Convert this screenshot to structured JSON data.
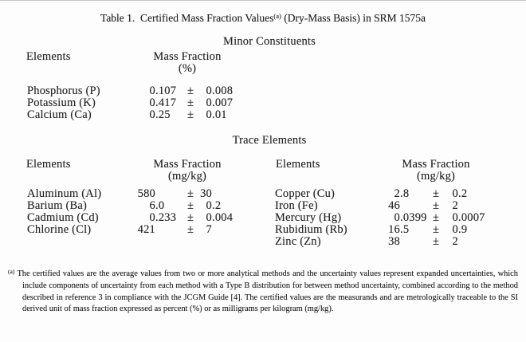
{
  "title": {
    "pre": "Table 1.  Certified Mass Fraction Values",
    "sup": "(a)",
    "post": " (Dry-Mass Basis) in SRM 1575a"
  },
  "symbols": {
    "plus_minus": "±"
  },
  "minor": {
    "heading": "Minor Constituents",
    "col_elements": "Elements",
    "col_mass_fraction": "Mass Fraction",
    "col_unit": "(%)",
    "rows": [
      {
        "element": "Phosphorus (P)",
        "value": "0.107",
        "uncertainty": "0.008"
      },
      {
        "element": "Potassium (K)",
        "value": "0.417",
        "uncertainty": "0.007"
      },
      {
        "element": "Calcium (Ca)",
        "value": "0.25",
        "uncertainty": "0.01"
      }
    ]
  },
  "trace": {
    "heading": "Trace Elements",
    "left": {
      "col_elements": "Elements",
      "col_mass_fraction": "Mass Fraction",
      "col_unit": "(mg/kg)",
      "rows": [
        {
          "element": "Aluminum (Al)",
          "value": "580",
          "uncertainty": "30"
        },
        {
          "element": "Barium (Ba)",
          "value": "6.0",
          "uncertainty": "0.2"
        },
        {
          "element": "Cadmium (Cd)",
          "value": "0.233",
          "uncertainty": "0.004"
        },
        {
          "element": "Chlorine (Cl)",
          "value": "421",
          "uncertainty": "7"
        }
      ]
    },
    "right": {
      "col_elements": "Elements",
      "col_mass_fraction": "Mass Fraction",
      "col_unit": "(mg/kg)",
      "rows": [
        {
          "element": "Copper (Cu)",
          "value": "2.8",
          "uncertainty": "0.2"
        },
        {
          "element": "Iron (Fe)",
          "value": "46",
          "uncertainty": "2"
        },
        {
          "element": "Mercury (Hg)",
          "value": "0.0399",
          "uncertainty": "0.0007"
        },
        {
          "element": "Rubidium (Rb)",
          "value": "16.5",
          "uncertainty": "0.9"
        },
        {
          "element": "Zinc (Zn)",
          "value": "38",
          "uncertainty": "2"
        }
      ]
    }
  },
  "footnote": {
    "marker": "(a)",
    "text": "The certified values are the average values from two or more analytical methods and the uncertainty values represent expanded uncertainties, which include components of uncertainty from each method with a Type B distribution for between method uncertainty, combined according to the method described in reference 3 in compliance with the JCGM Guide [4].  The certified values are the measurands and are metrologically traceable to the SI derived unit of mass fraction expressed as percent (%) or as milligrams per kilogram (mg/kg)."
  }
}
